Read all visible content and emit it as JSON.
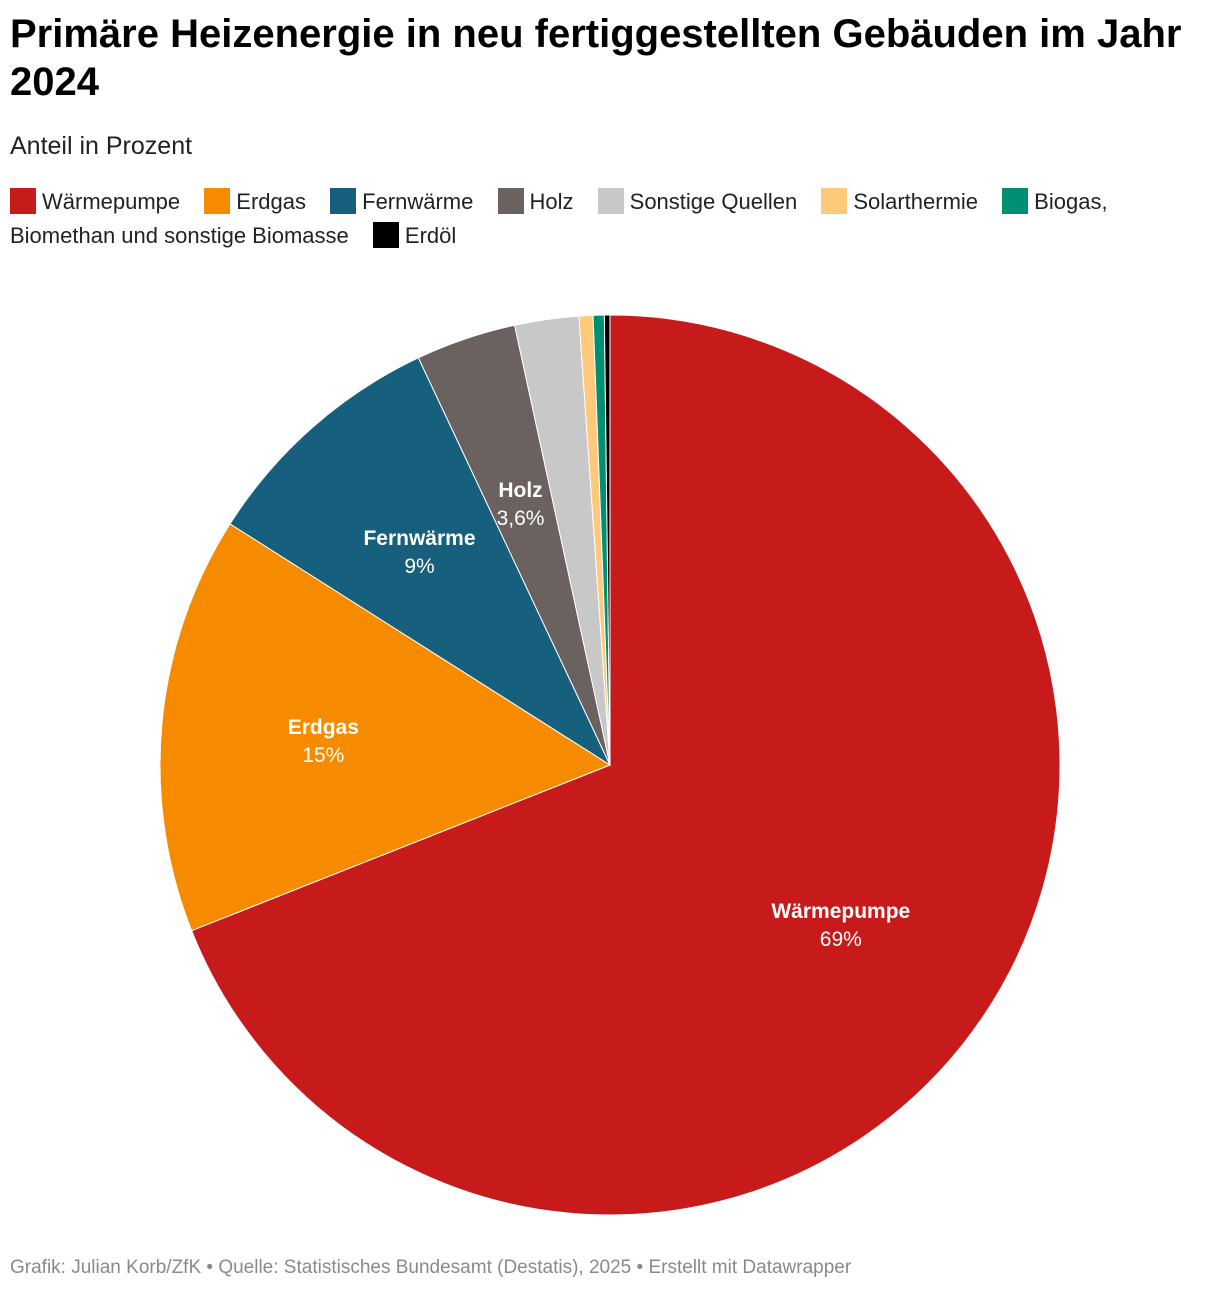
{
  "title": "Primäre Heizenergie in neu fertiggestellten Gebäuden im Jahr 2024",
  "subtitle": "Anteil in Prozent",
  "footer": "Grafik: Julian Korb/ZfK • Quelle: Statistisches Bundesamt (Destatis), 2025 • Erstellt mit Datawrapper",
  "chart_data": {
    "type": "pie",
    "title": "Primäre Heizenergie in neu fertiggestellten Gebäuden im Jahr 2024",
    "subtitle": "Anteil in Prozent",
    "legend_position": "top",
    "slices": [
      {
        "name": "Wärmepumpe",
        "value": 69,
        "label": "69%",
        "color": "#c71b1b",
        "show_label": true
      },
      {
        "name": "Erdgas",
        "value": 15,
        "label": "15%",
        "color": "#f68b00",
        "show_label": true
      },
      {
        "name": "Fernwärme",
        "value": 9,
        "label": "9%",
        "color": "#17607d",
        "show_label": true
      },
      {
        "name": "Holz",
        "value": 3.6,
        "label": "3,6%",
        "color": "#6b625f",
        "show_label": true
      },
      {
        "name": "Sonstige Quellen",
        "value": 2.3,
        "label": "2,3%",
        "color": "#c8c8c8",
        "show_label": false
      },
      {
        "name": "Solarthermie",
        "value": 0.5,
        "label": "0,5%",
        "color": "#fec97b",
        "show_label": false
      },
      {
        "name": "Biogas, Biomethan und sonstige Biomasse",
        "value": 0.4,
        "label": "0,4%",
        "color": "#008f72",
        "show_label": false
      },
      {
        "name": "Erdöl",
        "value": 0.2,
        "label": "0,2%",
        "color": "#000000",
        "show_label": false
      }
    ]
  }
}
